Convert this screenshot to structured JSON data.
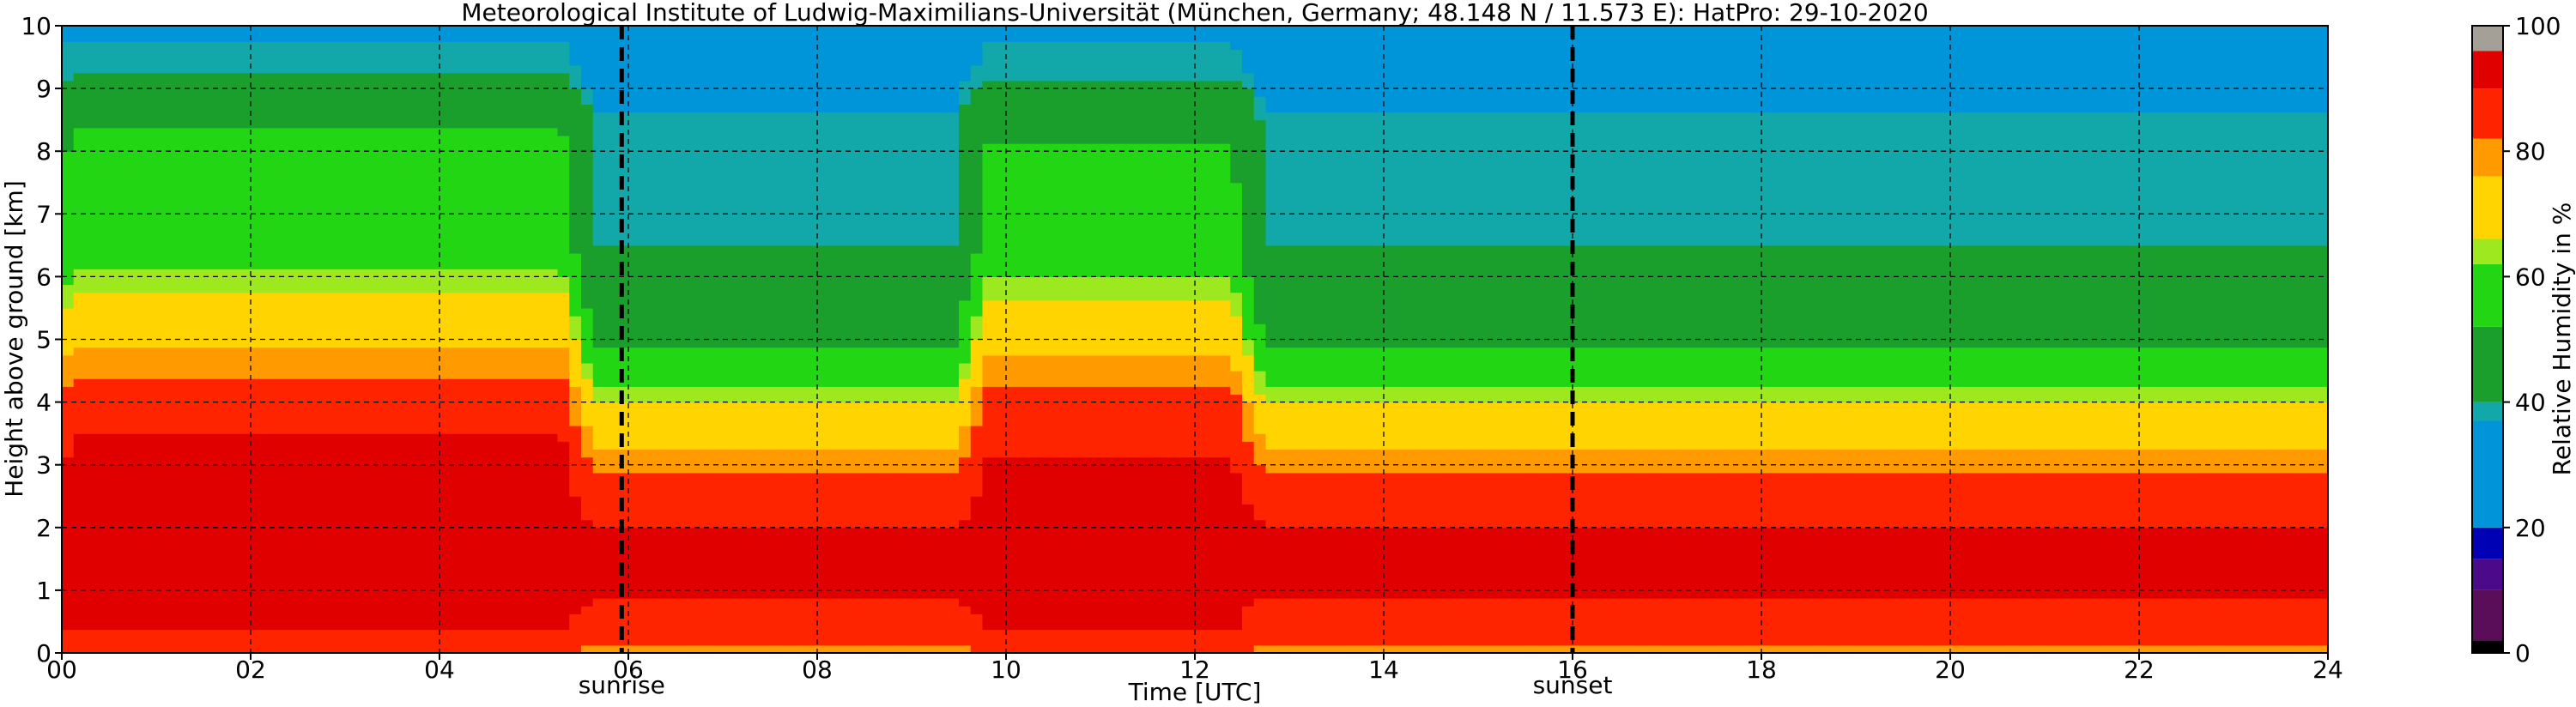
{
  "chart_data": {
    "type": "heatmap",
    "title": "Meteorological Institute of Ludwig-Maximilians-Universität (München, Germany; 48.148 N / 11.573 E):    HatPro: 29-10-2020",
    "xlabel": "Time [UTC]",
    "ylabel": "Height above ground [km]",
    "xlim": [
      0,
      24
    ],
    "ylim": [
      0,
      10
    ],
    "x_ticks": [
      "00",
      "02",
      "04",
      "06",
      "08",
      "10",
      "12",
      "14",
      "16",
      "18",
      "20",
      "22",
      "24"
    ],
    "y_ticks": [
      "0",
      "1",
      "2",
      "3",
      "4",
      "5",
      "6",
      "7",
      "8",
      "9",
      "10"
    ],
    "grid": true,
    "events": [
      {
        "label": "sunrise",
        "time": 5.93
      },
      {
        "label": "sunset",
        "time": 16.0
      }
    ],
    "colorbar": {
      "label": "Relative Humidity in %",
      "range": [
        0,
        100
      ],
      "ticks": [
        "0",
        "20",
        "40",
        "60",
        "80",
        "100"
      ],
      "colors": [
        {
          "from": 0,
          "to": 2,
          "color": "#000000"
        },
        {
          "from": 2,
          "to": 10,
          "color": "#5a0e5a"
        },
        {
          "from": 10,
          "to": 15,
          "color": "#4a0a8a"
        },
        {
          "from": 15,
          "to": 20,
          "color": "#0000b4"
        },
        {
          "from": 20,
          "to": 37,
          "color": "#0095d9"
        },
        {
          "from": 37,
          "to": 40,
          "color": "#12a7a8"
        },
        {
          "from": 40,
          "to": 52,
          "color": "#1b9f2c"
        },
        {
          "from": 52,
          "to": 62,
          "color": "#22d614"
        },
        {
          "from": 62,
          "to": 66,
          "color": "#9de81e"
        },
        {
          "from": 66,
          "to": 76,
          "color": "#ffd400"
        },
        {
          "from": 76,
          "to": 82,
          "color": "#ff9a00"
        },
        {
          "from": 82,
          "to": 90,
          "color": "#ff2400"
        },
        {
          "from": 90,
          "to": 96,
          "color": "#e00000"
        },
        {
          "from": 96,
          "to": 100,
          "color": "#a49f97"
        }
      ]
    },
    "profile_background": [
      {
        "height_km": 0.0,
        "rh": 78
      },
      {
        "height_km": 0.25,
        "rh": 84
      },
      {
        "height_km": 1.0,
        "rh": 91
      },
      {
        "height_km": 2.0,
        "rh": 90
      },
      {
        "height_km": 2.5,
        "rh": 86
      },
      {
        "height_km": 3.0,
        "rh": 80
      },
      {
        "height_km": 3.6,
        "rh": 72
      },
      {
        "height_km": 4.2,
        "rh": 62
      },
      {
        "height_km": 4.8,
        "rh": 53
      },
      {
        "height_km": 5.5,
        "rh": 46
      },
      {
        "height_km": 6.2,
        "rh": 41
      },
      {
        "height_km": 7.0,
        "rh": 38.5
      },
      {
        "height_km": 8.5,
        "rh": 38
      },
      {
        "height_km": 9.0,
        "rh": 35
      },
      {
        "height_km": 10.0,
        "rh": 33
      }
    ],
    "moist_episodes": [
      {
        "start": 0.1,
        "end": 5.3,
        "top_km": 9.0,
        "intensity": 1.0
      },
      {
        "start": 9.8,
        "end": 12.4,
        "top_km": 9.0,
        "intensity": 0.9
      }
    ],
    "profile_moist": [
      {
        "height_km": 0.0,
        "rh": 84
      },
      {
        "height_km": 0.4,
        "rh": 91
      },
      {
        "height_km": 1.0,
        "rh": 93
      },
      {
        "height_km": 2.0,
        "rh": 94
      },
      {
        "height_km": 3.0,
        "rh": 92
      },
      {
        "height_km": 4.0,
        "rh": 88
      },
      {
        "height_km": 4.4,
        "rh": 82
      },
      {
        "height_km": 5.0,
        "rh": 75
      },
      {
        "height_km": 5.6,
        "rh": 68
      },
      {
        "height_km": 6.3,
        "rh": 60
      },
      {
        "height_km": 7.0,
        "rh": 57
      },
      {
        "height_km": 8.0,
        "rh": 54
      },
      {
        "height_km": 8.7,
        "rh": 50
      },
      {
        "height_km": 9.2,
        "rh": 40
      },
      {
        "height_km": 10.0,
        "rh": 36
      }
    ]
  }
}
